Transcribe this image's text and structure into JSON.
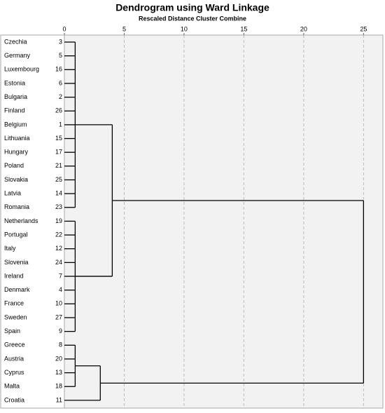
{
  "chart_data": {
    "type": "dendrogram",
    "title": "Dendrogram using Ward Linkage",
    "subtitle": "Rescaled Distance Cluster Combine",
    "xlim": [
      0,
      26.5
    ],
    "xticks": [
      0,
      5,
      10,
      15,
      20,
      25
    ],
    "grid": true,
    "color": "#000000",
    "leaves": [
      {
        "name": "Czechia",
        "id": 3
      },
      {
        "name": "Germany",
        "id": 5
      },
      {
        "name": "Luxembourg",
        "id": 16
      },
      {
        "name": "Estonia",
        "id": 6
      },
      {
        "name": "Bulgaria",
        "id": 2
      },
      {
        "name": "Finland",
        "id": 26
      },
      {
        "name": "Belgium",
        "id": 1
      },
      {
        "name": "Lithuania",
        "id": 15
      },
      {
        "name": "Hungary",
        "id": 17
      },
      {
        "name": "Poland",
        "id": 21
      },
      {
        "name": "Slovakia",
        "id": 25
      },
      {
        "name": "Latvia",
        "id": 14
      },
      {
        "name": "Romania",
        "id": 23
      },
      {
        "name": "Netherlands",
        "id": 19
      },
      {
        "name": "Portugal",
        "id": 22
      },
      {
        "name": "Italy",
        "id": 12
      },
      {
        "name": "Slovenia",
        "id": 24
      },
      {
        "name": "Ireland",
        "id": 7
      },
      {
        "name": "Denmark",
        "id": 4
      },
      {
        "name": "France",
        "id": 10
      },
      {
        "name": "Sweden",
        "id": 27
      },
      {
        "name": "Spain",
        "id": 9
      },
      {
        "name": "Greece",
        "id": 8
      },
      {
        "name": "Austria",
        "id": 20
      },
      {
        "name": "Cyprus",
        "id": 13
      },
      {
        "name": "Malta",
        "id": 18
      },
      {
        "name": "Croatia",
        "id": 11
      }
    ],
    "clusters": [
      {
        "children": [
          0,
          1,
          2,
          3,
          4,
          5,
          6,
          7,
          8,
          9,
          10,
          11,
          12
        ],
        "distance": 0.9
      },
      {
        "children": [
          13,
          14,
          15,
          16,
          17,
          18,
          19,
          20,
          21
        ],
        "distance": 0.9
      },
      {
        "children": [
          22,
          23,
          24,
          25
        ],
        "distance": 0.9
      },
      {
        "children": [
          27,
          28
        ],
        "distance": 4
      },
      {
        "children": [
          29,
          26
        ],
        "distance": 3
      },
      {
        "children": [
          30,
          31
        ],
        "distance": 25
      }
    ]
  }
}
